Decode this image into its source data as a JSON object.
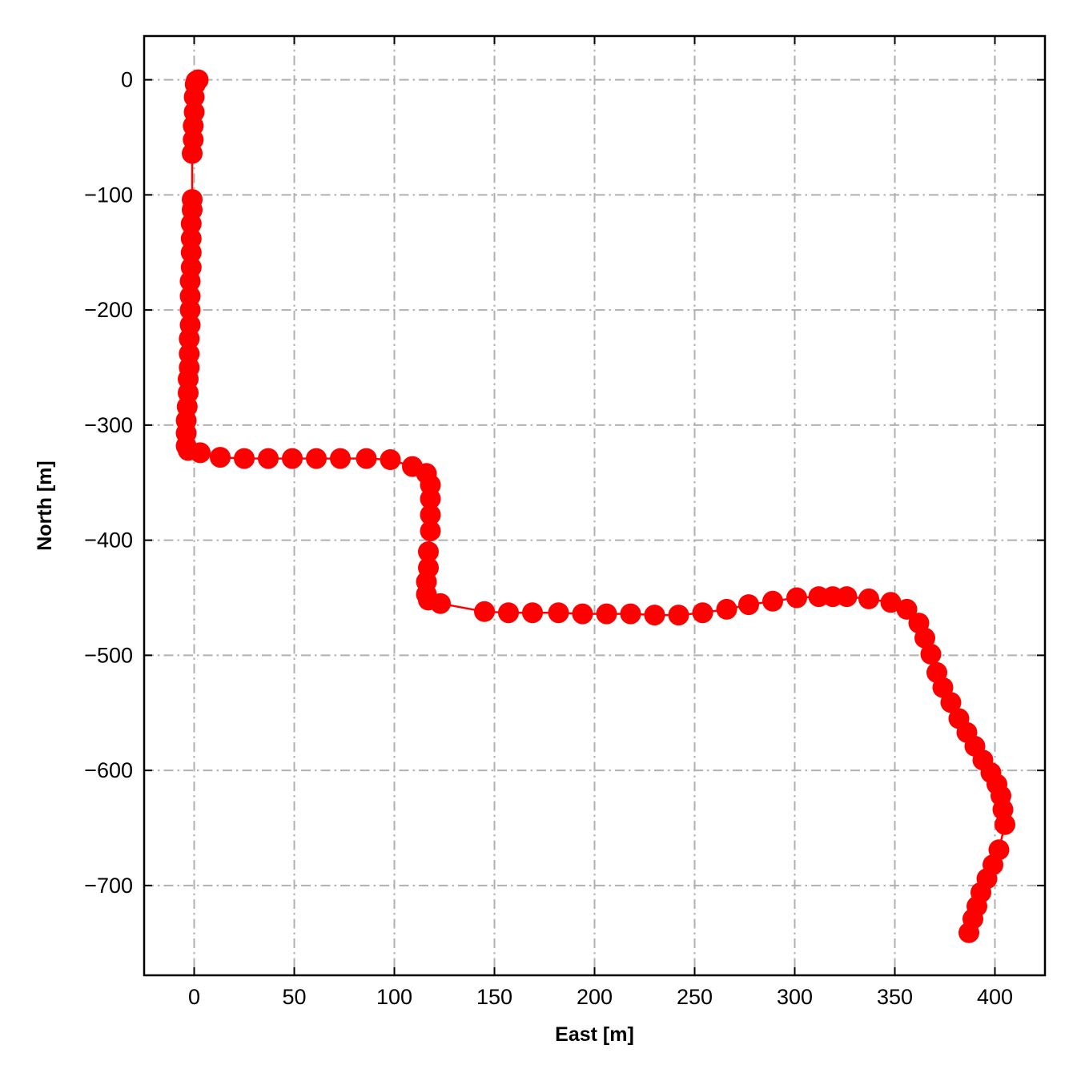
{
  "chart_data": {
    "type": "line",
    "marker": "circle",
    "xlabel": "East [m]",
    "ylabel": "North [m]",
    "xlim": [
      -25,
      425
    ],
    "ylim": [
      -778,
      38
    ],
    "xticks": [
      0,
      50,
      100,
      150,
      200,
      250,
      300,
      350,
      400
    ],
    "yticks": [
      0,
      -100,
      -200,
      -300,
      -400,
      -500,
      -600,
      -700
    ],
    "xtick_labels": [
      "0",
      "50",
      "100",
      "150",
      "200",
      "250",
      "300",
      "350",
      "400"
    ],
    "ytick_labels": [
      "0",
      "−100",
      "−200",
      "−300",
      "−400",
      "−500",
      "−600",
      "−700"
    ],
    "grid": true,
    "grid_style": "dashdot",
    "grid_color": "#b0b0b0",
    "series": [
      {
        "color": "#ff0000",
        "x": [
          2,
          1,
          0.5,
          0,
          0,
          -0.5,
          -0.5,
          -1,
          -1,
          -1,
          -1.5,
          -1.5,
          -1.5,
          -1.5,
          -2,
          -2,
          -2,
          -2,
          -2.5,
          -2.5,
          -2.5,
          -3,
          -3,
          -3.5,
          -4,
          -4,
          -4,
          -3,
          3,
          13,
          25,
          37,
          49,
          61,
          73,
          86,
          98,
          109,
          116,
          118,
          118,
          118,
          118,
          117,
          117,
          116,
          116,
          117,
          123,
          145,
          157,
          169,
          182,
          194,
          206,
          218,
          230,
          242,
          254,
          266,
          277,
          289,
          301,
          312,
          319,
          326,
          337,
          348,
          356,
          362,
          365,
          368,
          371,
          374,
          378,
          382,
          386,
          390,
          394,
          398,
          401,
          403,
          404,
          405,
          402,
          399,
          396,
          393,
          391,
          389,
          387
        ],
        "y": [
          0,
          -1,
          -4,
          -15,
          -28,
          -40,
          -52,
          -64,
          -104,
          -113,
          -125,
          -138,
          -150,
          -163,
          -175,
          -188,
          -200,
          -213,
          -225,
          -238,
          -250,
          -260,
          -272,
          -284,
          -296,
          -307,
          -318,
          -322,
          -324,
          -328,
          -329,
          -329,
          -329,
          -329,
          -329,
          -329,
          -330,
          -336,
          -342,
          -352,
          -364,
          -378,
          -392,
          -410,
          -424,
          -436,
          -447,
          -452,
          -455,
          -462,
          -463,
          -463,
          -463,
          -464,
          -464,
          -464,
          -465,
          -465,
          -463,
          -460,
          -456,
          -453,
          -450,
          -449,
          -449,
          -449,
          -451,
          -454,
          -460,
          -472,
          -485,
          -499,
          -515,
          -528,
          -541,
          -555,
          -567,
          -579,
          -591,
          -602,
          -612,
          -622,
          -634,
          -647,
          -669,
          -682,
          -694,
          -706,
          -718,
          -729,
          -741
        ]
      }
    ]
  }
}
